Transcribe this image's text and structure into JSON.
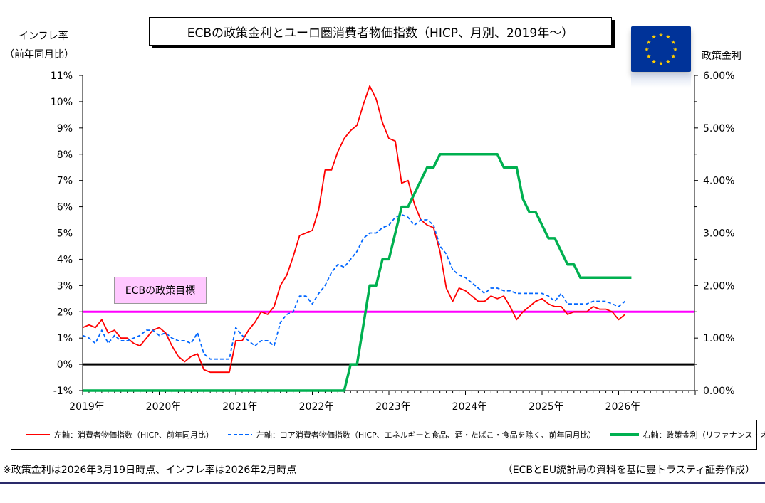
{
  "title": "ECBの政策金利とユーロ圏消費者物価指数（HICP、月別、2019年～）",
  "left_axis_title_line1": "インフレ率",
  "left_axis_title_line2": "（前年同月比）",
  "right_axis_title": "政策金利",
  "target_label": "ECBの政策目標",
  "flag_icon": "eu-flag-icon",
  "footnote_left": "※政策金利は2026年3月19日時点、インフレ率は2026年2月時点",
  "footnote_right": "（ECBとEU統計局の資料を基に豊トラスティ証券作成）",
  "chart_data": {
    "type": "line",
    "x_tick_labels": [
      "2019年",
      "2020年",
      "2021年",
      "2022年",
      "2023年",
      "2024年",
      "2025年",
      "2026年"
    ],
    "x_start": "2019-01",
    "left_y": {
      "min": -1,
      "max": 11,
      "ticks": [
        "-1%",
        "0%",
        "1%",
        "2%",
        "3%",
        "4%",
        "5%",
        "6%",
        "7%",
        "8%",
        "9%",
        "10%",
        "11%"
      ]
    },
    "right_y": {
      "min": 0,
      "max": 6,
      "ticks": [
        "0.00%",
        "1.00%",
        "2.00%",
        "3.00%",
        "4.00%",
        "5.00%",
        "6.00%"
      ]
    },
    "target_line": {
      "value": 2,
      "axis": "left",
      "color": "#ff00ff"
    },
    "zero_line": {
      "value": 0,
      "axis": "left",
      "color": "#000000"
    },
    "grid": false,
    "legend_position": "bottom",
    "series": [
      {
        "name": "左軸：消費者物価指数（HICP、前年同月比）",
        "axis": "left",
        "color": "#ff0000",
        "style": "solid",
        "values": [
          1.4,
          1.5,
          1.4,
          1.7,
          1.2,
          1.3,
          1.0,
          1.0,
          0.8,
          0.7,
          1.0,
          1.3,
          1.4,
          1.2,
          0.7,
          0.3,
          0.1,
          0.3,
          0.4,
          -0.2,
          -0.3,
          -0.3,
          -0.3,
          -0.3,
          0.9,
          0.9,
          1.3,
          1.6,
          2.0,
          1.9,
          2.2,
          3.0,
          3.4,
          4.1,
          4.9,
          5.0,
          5.1,
          5.9,
          7.4,
          7.4,
          8.1,
          8.6,
          8.9,
          9.1,
          9.9,
          10.6,
          10.1,
          9.2,
          8.6,
          8.5,
          6.9,
          7.0,
          6.1,
          5.5,
          5.3,
          5.2,
          4.3,
          2.9,
          2.4,
          2.9,
          2.8,
          2.6,
          2.4,
          2.4,
          2.6,
          2.5,
          2.6,
          2.2,
          1.7,
          2.0,
          2.2,
          2.4,
          2.5,
          2.3,
          2.2,
          2.2,
          1.9,
          2.0,
          2.0,
          2.0,
          2.2,
          2.1,
          2.1,
          2.0,
          1.7,
          1.9
        ]
      },
      {
        "name": "左軸：コア消費者物価指数（HICP、エネルギーと食品、酒・たばこ・食品を除く、前年同月比）",
        "axis": "left",
        "color": "#0066ff",
        "style": "dashed",
        "values": [
          1.1,
          1.0,
          0.8,
          1.3,
          0.8,
          1.1,
          0.9,
          0.9,
          1.0,
          1.1,
          1.3,
          1.3,
          1.1,
          1.2,
          1.0,
          0.9,
          0.9,
          0.8,
          1.2,
          0.4,
          0.2,
          0.2,
          0.2,
          0.2,
          1.4,
          1.1,
          0.9,
          0.7,
          0.9,
          0.9,
          0.7,
          1.6,
          1.9,
          2.0,
          2.6,
          2.6,
          2.3,
          2.7,
          3.0,
          3.5,
          3.8,
          3.7,
          4.0,
          4.3,
          4.8,
          5.0,
          5.0,
          5.2,
          5.3,
          5.6,
          5.7,
          5.6,
          5.3,
          5.5,
          5.5,
          5.3,
          4.5,
          4.2,
          3.6,
          3.4,
          3.3,
          3.1,
          2.9,
          2.7,
          2.9,
          2.9,
          2.8,
          2.8,
          2.7,
          2.7,
          2.7,
          2.7,
          2.7,
          2.6,
          2.4,
          2.7,
          2.3,
          2.3,
          2.3,
          2.3,
          2.4,
          2.4,
          2.4,
          2.3,
          2.2,
          2.4
        ]
      },
      {
        "name": "右軸：政策金利（リファナンス・オペ）",
        "axis": "right",
        "color": "#00b050",
        "style": "solid",
        "values": [
          0,
          0,
          0,
          0,
          0,
          0,
          0,
          0,
          0,
          0,
          0,
          0,
          0,
          0,
          0,
          0,
          0,
          0,
          0,
          0,
          0,
          0,
          0,
          0,
          0,
          0,
          0,
          0,
          0,
          0,
          0,
          0,
          0,
          0,
          0,
          0,
          0,
          0,
          0,
          0,
          0,
          0,
          0.5,
          0.5,
          1.25,
          2.0,
          2.0,
          2.5,
          2.5,
          3.0,
          3.5,
          3.5,
          3.75,
          4.0,
          4.25,
          4.25,
          4.5,
          4.5,
          4.5,
          4.5,
          4.5,
          4.5,
          4.5,
          4.5,
          4.5,
          4.5,
          4.25,
          4.25,
          4.25,
          3.65,
          3.4,
          3.4,
          3.15,
          2.9,
          2.9,
          2.65,
          2.4,
          2.4,
          2.15,
          2.15,
          2.15,
          2.15,
          2.15,
          2.15,
          2.15,
          2.15,
          2.15
        ]
      }
    ]
  }
}
